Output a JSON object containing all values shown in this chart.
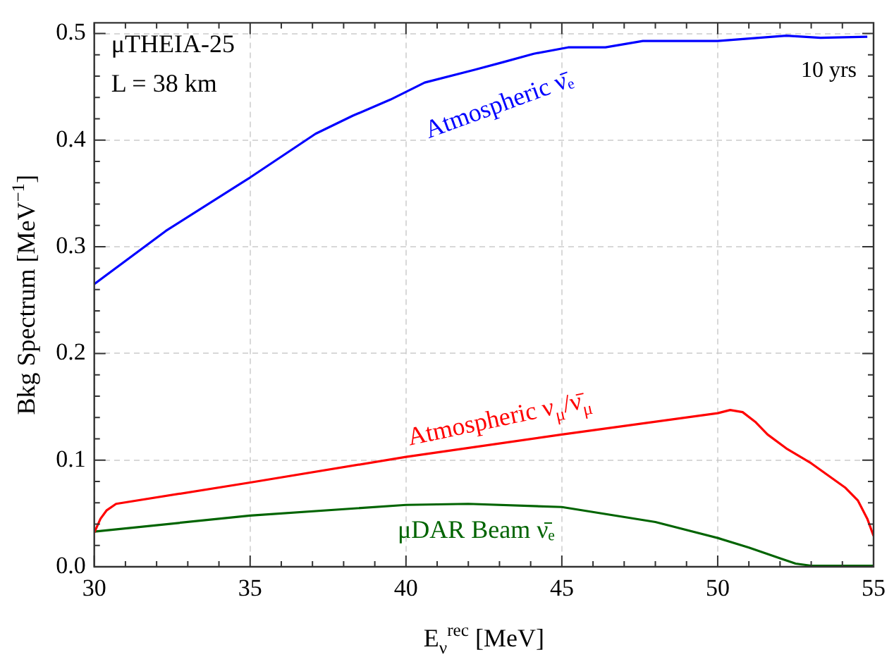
{
  "chart_data": {
    "type": "line",
    "xlabel": "E$_{ν}$$^{rec}$ [MeV]",
    "ylabel": "Bkg Spectrum [MeV$^{−1}$]",
    "annotations": [
      "μTHEIA-25",
      "L = 38 km",
      "10 yrs"
    ],
    "xlim": [
      30,
      55
    ],
    "ylim": [
      0,
      0.51
    ],
    "xticks": [
      30,
      {
        "value": 31,
        "label": null
      },
      {
        "value": 32,
        "label": null
      },
      {
        "value": 33,
        "label": null
      },
      {
        "value": 34,
        "label": null
      },
      35,
      {
        "value": 36,
        "label": null
      },
      {
        "value": 37,
        "label": null
      },
      {
        "value": 38,
        "label": null
      },
      {
        "value": 39,
        "label": null
      },
      40,
      {
        "value": 41,
        "label": null
      },
      {
        "value": 42,
        "label": null
      },
      {
        "value": 43,
        "label": null
      },
      {
        "value": 44,
        "label": null
      },
      45,
      {
        "value": 46,
        "label": null
      },
      {
        "value": 47,
        "label": null
      },
      {
        "value": 48,
        "label": null
      },
      {
        "value": 49,
        "label": null
      },
      50,
      {
        "value": 51,
        "label": null
      },
      {
        "value": 52,
        "label": null
      },
      {
        "value": 53,
        "label": null
      },
      {
        "value": 54,
        "label": null
      },
      55
    ],
    "yticks": [
      {
        "value": 0,
        "label": "0.0"
      },
      {
        "value": 0.02,
        "label": null
      },
      {
        "value": 0.04,
        "label": null
      },
      {
        "value": 0.06,
        "label": null
      },
      {
        "value": 0.08,
        "label": null
      },
      0.1,
      {
        "value": 0.12,
        "label": null
      },
      {
        "value": 0.14,
        "label": null
      },
      {
        "value": 0.16,
        "label": null
      },
      {
        "value": 0.18,
        "label": null
      },
      0.2,
      {
        "value": 0.22,
        "label": null
      },
      {
        "value": 0.24,
        "label": null
      },
      {
        "value": 0.26,
        "label": null
      },
      {
        "value": 0.28,
        "label": null
      },
      0.3,
      {
        "value": 0.32,
        "label": null
      },
      {
        "value": 0.34,
        "label": null
      },
      {
        "value": 0.36,
        "label": null
      },
      {
        "value": 0.38,
        "label": null
      },
      0.4,
      {
        "value": 0.42,
        "label": null
      },
      {
        "value": 0.44,
        "label": null
      },
      {
        "value": 0.46,
        "label": null
      },
      {
        "value": 0.48,
        "label": null
      },
      0.5
    ],
    "grid": true,
    "legend": false,
    "marker": "none",
    "line_style": "solid",
    "series": [
      {
        "name": "Atmospheric ν̄ₑ",
        "color": "#0000ff",
        "x": [
          30,
          32.3,
          35,
          37.1,
          38.3,
          39.5,
          40.6,
          42.2,
          43.1,
          44.1,
          45.2,
          46.4,
          47.6,
          50,
          52.2,
          53.3,
          54.8
        ],
        "values": [
          0.265,
          0.315,
          0.365,
          0.406,
          0.423,
          0.438,
          0.454,
          0.466,
          0.473,
          0.481,
          0.487,
          0.487,
          0.493,
          0.493,
          0.498,
          0.496,
          0.497
        ]
      },
      {
        "name": "Atmospheric ν$_{μ}$/ν̄$_{μ}$",
        "color": "#ff0000",
        "x": [
          30,
          30.2,
          30.4,
          30.7,
          35,
          40,
          45,
          50,
          50.4,
          50.8,
          51.2,
          51.6,
          52.2,
          53,
          54.1,
          54.5,
          54.8,
          55
        ],
        "values": [
          0.032,
          0.045,
          0.053,
          0.059,
          0.079,
          0.103,
          0.124,
          0.144,
          0.147,
          0.145,
          0.136,
          0.124,
          0.111,
          0.097,
          0.074,
          0.062,
          0.045,
          0.029
        ]
      },
      {
        "name": "μDAR Beam ν̄ₑ",
        "color": "#006400",
        "x": [
          30,
          35,
          40,
          42,
          45,
          48,
          50,
          51,
          52,
          52.5,
          53,
          55
        ],
        "values": [
          0.033,
          0.048,
          0.058,
          0.059,
          0.056,
          0.042,
          0.027,
          0.018,
          0.008,
          0.003,
          0.001,
          0.001
        ]
      }
    ]
  }
}
